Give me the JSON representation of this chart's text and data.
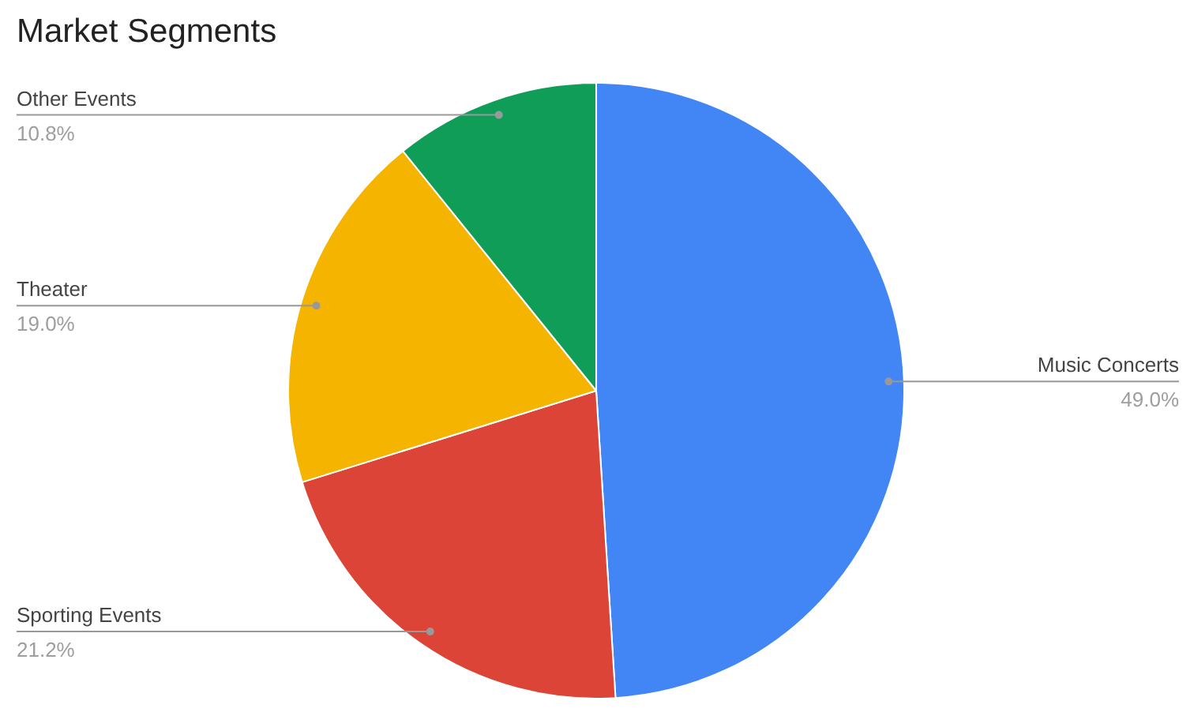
{
  "chart_data": {
    "type": "pie",
    "title": "Market Segments",
    "categories": [
      "Music Concerts",
      "Sporting Events",
      "Theater",
      "Other Events"
    ],
    "values": [
      49.0,
      21.2,
      19.0,
      10.8
    ],
    "colors": [
      "#4285f4",
      "#db4437",
      "#f4b400",
      "#0f9d58"
    ],
    "value_labels": [
      "49.0%",
      "21.2%",
      "19.0%",
      "10.8%"
    ]
  }
}
